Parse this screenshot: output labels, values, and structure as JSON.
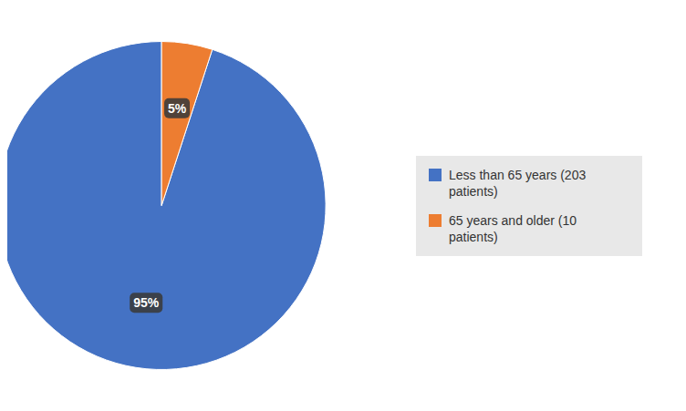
{
  "chart_data": {
    "type": "pie",
    "categories": [
      "Less than 65 years (203\npatients)",
      "65 years and older (10\npatients)"
    ],
    "values": [
      95,
      5
    ],
    "value_labels": [
      "95%",
      "5%"
    ],
    "colors": [
      "#4472C4",
      "#ED7D31"
    ],
    "data_labels": true,
    "legend": "right"
  }
}
